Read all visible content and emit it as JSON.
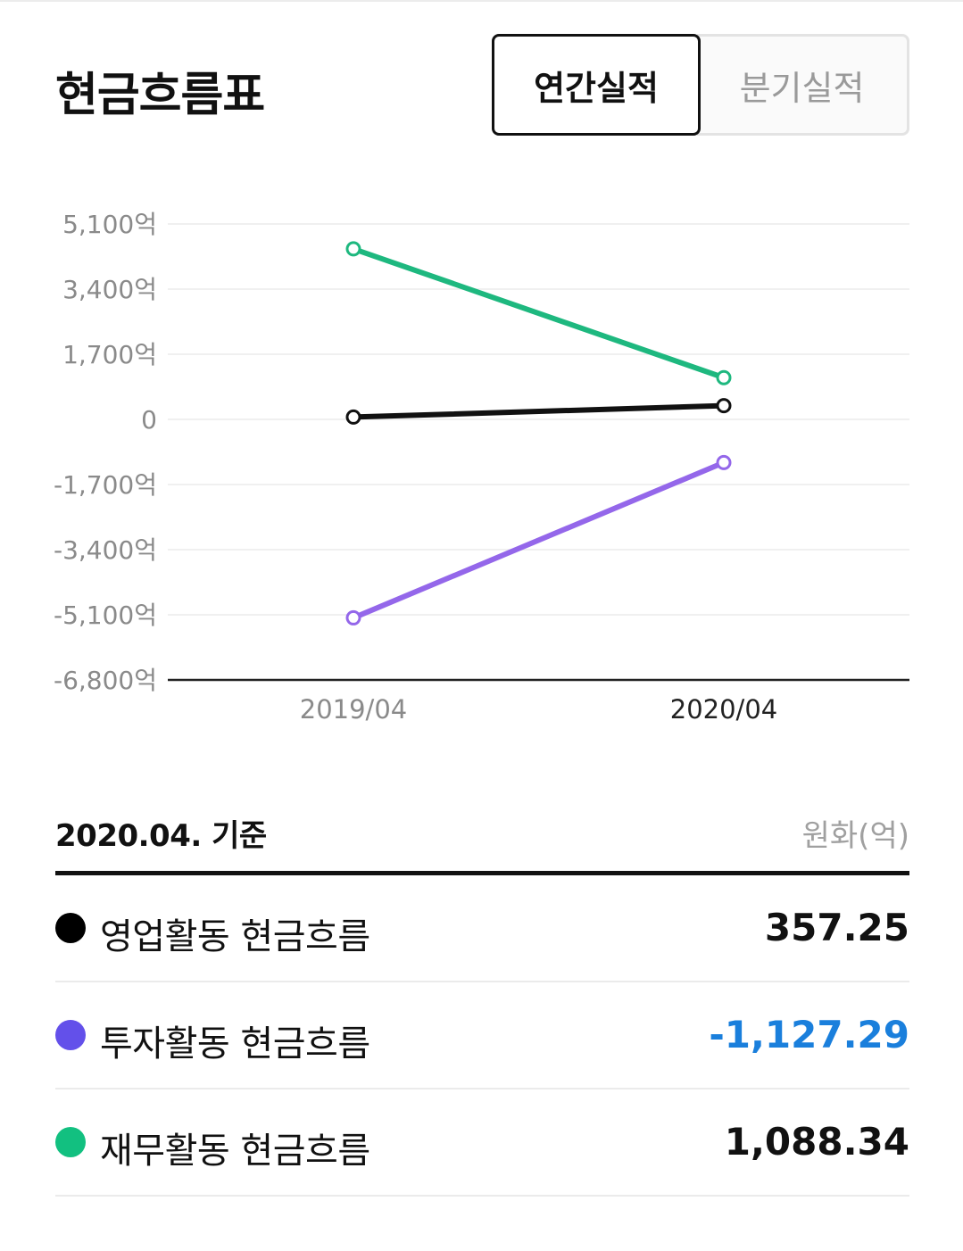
{
  "header": {
    "title": "현금흐름표",
    "tabs": [
      {
        "label": "연간실적",
        "active": true
      },
      {
        "label": "분기실적",
        "active": false
      }
    ]
  },
  "chart_data": {
    "type": "line",
    "x": [
      "2019/04",
      "2020/04"
    ],
    "highlighted_x": "2020/04",
    "ylim": [
      -6800,
      5100
    ],
    "yticks": [
      5100,
      3400,
      1700,
      0,
      -1700,
      -3400,
      -5100,
      -6800
    ],
    "ytick_labels": [
      "5,100억",
      "3,400억",
      "1,700억",
      "0",
      "-1,700억",
      "-3,400억",
      "-5,100억",
      "-6,800억"
    ],
    "grid": true,
    "series": [
      {
        "name": "재무활동 현금흐름",
        "color": "#1eb87f",
        "values": [
          4450,
          1088.34
        ]
      },
      {
        "name": "영업활동 현금흐름",
        "color": "#111111",
        "values": [
          60,
          357.25
        ]
      },
      {
        "name": "투자활동 현금흐름",
        "color": "#9467ea",
        "values": [
          -5180,
          -1127.29
        ]
      }
    ]
  },
  "summary": {
    "as_of": "2020.04. 기준",
    "unit": "원화(억)",
    "rows": [
      {
        "label": "영업활동 현금흐름",
        "value": "357.25",
        "dot_color": "#000000",
        "value_color": "#111111"
      },
      {
        "label": "투자활동 현금흐름",
        "value": "-1,127.29",
        "dot_color": "#6350ea",
        "value_color": "#1a7fdc"
      },
      {
        "label": "재무활동 현금흐름",
        "value": "1,088.34",
        "dot_color": "#12c080",
        "value_color": "#111111"
      }
    ]
  }
}
